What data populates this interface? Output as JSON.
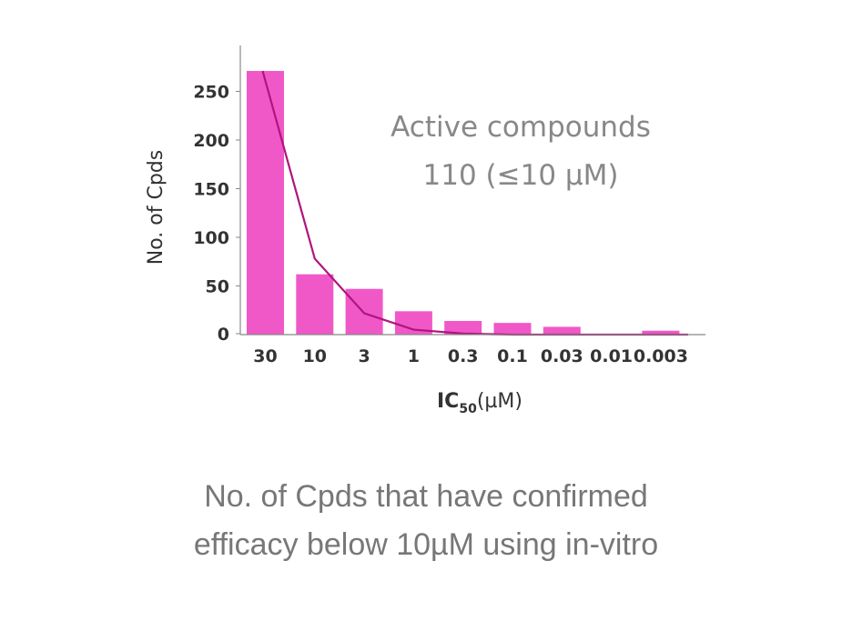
{
  "chart_data": {
    "type": "bar",
    "categories": [
      "30",
      "10",
      "3",
      "1",
      "0.3",
      "0.1",
      "0.03",
      "0.01",
      "0.003"
    ],
    "values": [
      271,
      62,
      47,
      24,
      14,
      12,
      8,
      0,
      4
    ],
    "line_values": [
      271,
      78,
      22,
      5,
      1,
      0,
      0,
      0,
      0
    ],
    "xlabel_main": "IC",
    "xlabel_sub": "50",
    "xlabel_unit": "(µM)",
    "ylabel": "No. of Cpds",
    "yticks": [
      "0",
      "50",
      "100",
      "150",
      "200",
      "250"
    ],
    "ylim": [
      0,
      300
    ],
    "annotation": [
      "Active compounds",
      "110 (≤10 µM)"
    ],
    "grid": false,
    "bar_color": "#f058c8",
    "line_color": "#b0147e"
  },
  "caption": {
    "line1": "No. of Cpds that have confirmed",
    "line2": "efficacy below 10µM using in-vitro"
  }
}
